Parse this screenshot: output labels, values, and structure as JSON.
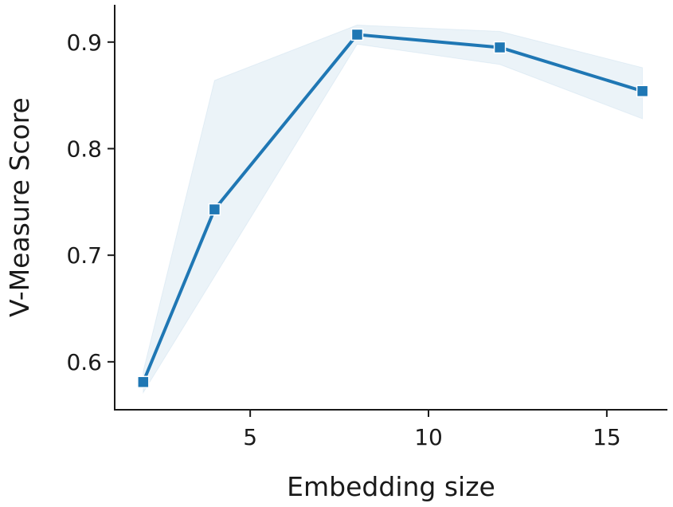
{
  "chart_data": {
    "type": "line",
    "xlabel": "Embedding size",
    "ylabel": "V-Measure Score",
    "x_ticks": [
      5,
      10,
      15
    ],
    "y_ticks": [
      0.6,
      0.7,
      0.8,
      0.9
    ],
    "y_tick_labels": [
      "0.6",
      "0.7",
      "0.8",
      "0.9"
    ],
    "x_tick_labels": [
      "5",
      "10",
      "15"
    ],
    "xlim": [
      1.2,
      16.7
    ],
    "ylim": [
      0.555,
      0.935
    ],
    "grid": false,
    "color": "#1f77b4",
    "marker": "square",
    "series": [
      {
        "x": [
          2,
          4,
          8,
          12,
          16
        ],
        "y": [
          0.581,
          0.743,
          0.907,
          0.895,
          0.854
        ],
        "ci_lower": [
          0.571,
          0.68,
          0.898,
          0.879,
          0.828
        ],
        "ci_upper": [
          0.591,
          0.864,
          0.916,
          0.91,
          0.876
        ]
      }
    ]
  }
}
